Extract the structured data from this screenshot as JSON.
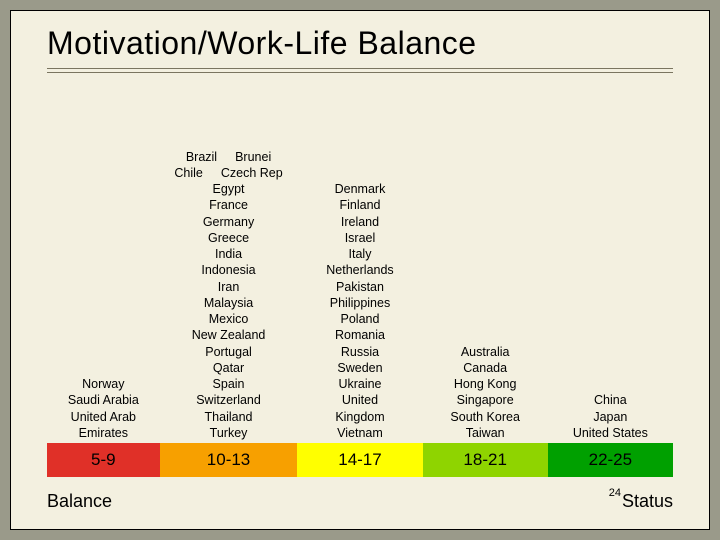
{
  "title": "Motivation/Work-Life Balance",
  "columns": [
    {
      "countries_flat": [
        "Norway",
        "Saudi Arabia",
        "United Arab",
        "Emirates"
      ],
      "range": "5-9",
      "color": "#e03028"
    },
    {
      "pair_rows": [
        [
          "Brazil",
          "Brunei"
        ],
        [
          "Chile",
          "Czech Rep"
        ]
      ],
      "countries_flat": [
        "Egypt",
        "France",
        "Germany",
        "Greece",
        "India",
        "Indonesia",
        "Iran",
        "Malaysia",
        "Mexico",
        "New Zealand",
        "Portugal",
        "Qatar",
        "Spain",
        "Switzerland",
        "Thailand",
        "Turkey"
      ],
      "range": "10-13",
      "color": "#f7a000"
    },
    {
      "countries_flat": [
        "Denmark",
        "Finland",
        "Ireland",
        "Israel",
        "Italy",
        "Netherlands",
        "Pakistan",
        "Philippines",
        "Poland",
        "Romania",
        "Russia",
        "Sweden",
        "Ukraine",
        "United",
        "Kingdom",
        "Vietnam"
      ],
      "range": "14-17",
      "color": "#ffff00"
    },
    {
      "countries_flat": [
        "Australia",
        "Canada",
        "Hong Kong",
        "Singapore",
        "South Korea",
        "Taiwan"
      ],
      "range": "18-21",
      "color": "#8fd400"
    },
    {
      "countries_flat": [
        "China",
        "Japan",
        "United States"
      ],
      "range": "22-25",
      "color": "#00a000"
    }
  ],
  "bottom_left": "Balance",
  "bottom_right": "Status",
  "page_number": "24",
  "style": {
    "slide_bg": "#f3f0e0",
    "outer_bg": "#9a9a8a",
    "title_fontsize": 32,
    "body_fontsize": 12.5,
    "range_fontsize": 17,
    "bottom_fontsize": 18
  }
}
